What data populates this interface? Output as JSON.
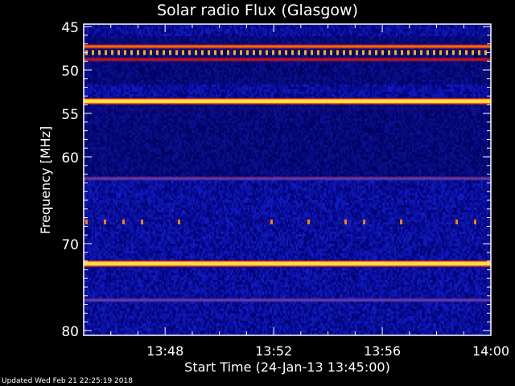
{
  "chart_data": {
    "type": "heatmap",
    "title": "Solar radio Flux (Glasgow)",
    "xlabel": "Start Time (24-Jan-13 13:45:00)",
    "ylabel": "Frequency [MHz]",
    "xlim": [
      "13:45",
      "14:00"
    ],
    "ylim": [
      45,
      80
    ],
    "y_inverted": true,
    "xticks": [
      "13:48",
      "13:52",
      "13:56",
      "14:00"
    ],
    "yticks": [
      45,
      50,
      55,
      60,
      70,
      80
    ],
    "colormap": "rainbow (dark blue low → yellow high)",
    "background_color": "#0a1aa0",
    "bands": [
      {
        "freq_mhz": 47.3,
        "level": "high",
        "color": "#ff6a00"
      },
      {
        "freq_mhz": 48.0,
        "level": "intermittent spikes",
        "color": "#ffb000"
      },
      {
        "freq_mhz": 48.8,
        "level": "medium",
        "color": "#d01010"
      },
      {
        "freq_mhz": 53.6,
        "level": "very high",
        "color": "#ffe040"
      },
      {
        "freq_mhz": 62.5,
        "level": "low-medium",
        "color": "#2050ff"
      },
      {
        "freq_mhz": 67.5,
        "level": "sporadic",
        "color": "#ff8000"
      },
      {
        "freq_mhz": 72.3,
        "level": "very high",
        "color": "#ffe040"
      },
      {
        "freq_mhz": 76.5,
        "level": "low-medium",
        "color": "#2050ff"
      }
    ]
  },
  "footer": "Updated Wed Feb 21 22:25:19 2018"
}
